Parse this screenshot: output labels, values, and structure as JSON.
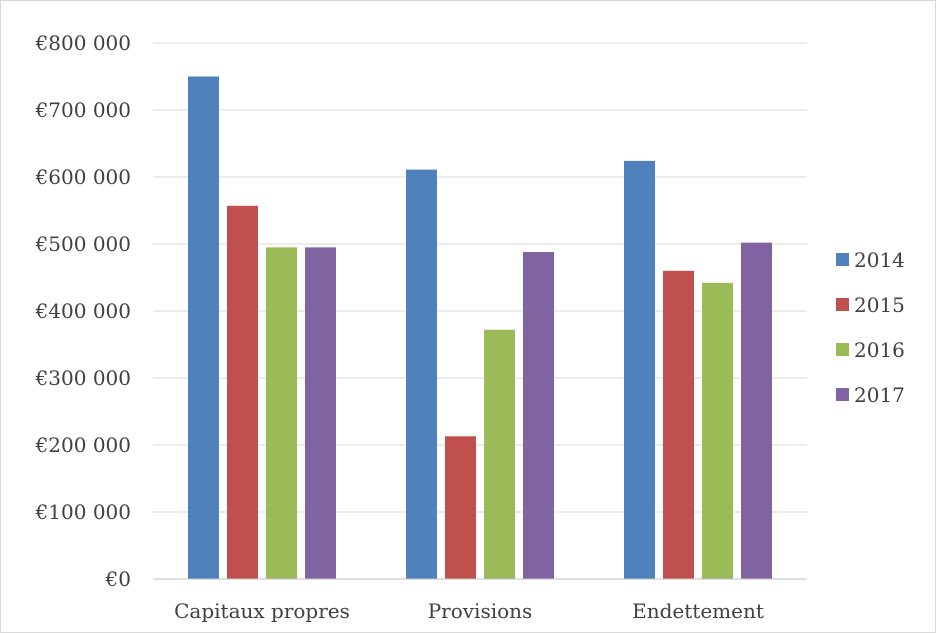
{
  "chart_data": {
    "type": "bar",
    "categories": [
      "Capitaux propres",
      "Provisions",
      "Endettement"
    ],
    "series": [
      {
        "name": "2014",
        "color": "#4f81bd",
        "values": [
          750000,
          611000,
          624000
        ]
      },
      {
        "name": "2015",
        "color": "#c0504d",
        "values": [
          557000,
          213000,
          460000
        ]
      },
      {
        "name": "2016",
        "color": "#9bbb59",
        "values": [
          495000,
          372000,
          442000
        ]
      },
      {
        "name": "2017",
        "color": "#8064a2",
        "values": [
          495000,
          488000,
          502000
        ]
      }
    ],
    "ylim": [
      0,
      800000
    ],
    "yticks": [
      0,
      100000,
      200000,
      300000,
      400000,
      500000,
      600000,
      700000,
      800000
    ],
    "ytick_labels": [
      "€0",
      "€100 000",
      "€200 000",
      "€300 000",
      "€400 000",
      "€500 000",
      "€600 000",
      "€700 000",
      "€800 000"
    ],
    "grid": true,
    "legend_position": "right",
    "title": "",
    "xlabel": "",
    "ylabel": ""
  }
}
